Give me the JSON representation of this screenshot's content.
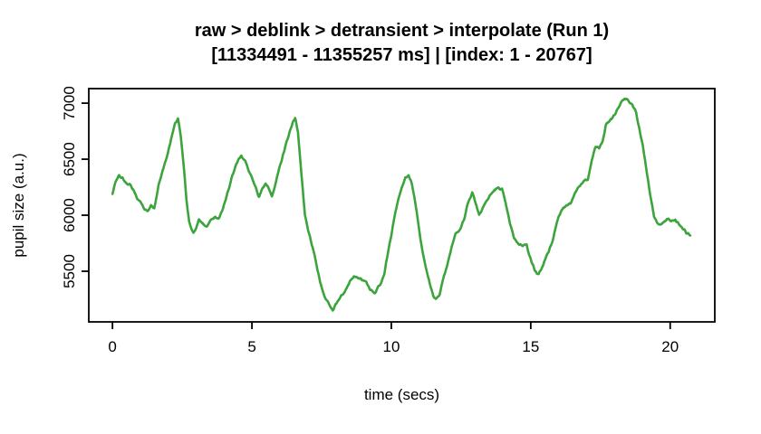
{
  "chart_data": {
    "type": "line",
    "title": "raw > deblink > detransient > interpolate (Run 1)",
    "subtitle": "[11334491 - 11355257 ms] | [index: 1 - 20767]",
    "xlabel": "time (secs)",
    "ylabel": "pupil size (a.u.)",
    "x_ticks": [
      0,
      5,
      10,
      15,
      20
    ],
    "y_ticks": [
      5500,
      6000,
      6500,
      7000
    ],
    "xlim": [
      -0.85,
      21.6
    ],
    "ylim": [
      5048,
      7130
    ],
    "grid": false,
    "legend": "none",
    "line_color": "#3CA43C",
    "series": [
      {
        "name": "pupil size trace",
        "points": [
          [
            0,
            6190
          ],
          [
            0.1,
            6285
          ],
          [
            0.23,
            6360
          ],
          [
            0.35,
            6330
          ],
          [
            0.5,
            6285
          ],
          [
            0.62,
            6270
          ],
          [
            0.75,
            6230
          ],
          [
            0.88,
            6150
          ],
          [
            1.0,
            6120
          ],
          [
            1.15,
            6055
          ],
          [
            1.27,
            6040
          ],
          [
            1.38,
            6085
          ],
          [
            1.5,
            6060
          ],
          [
            1.65,
            6265
          ],
          [
            1.8,
            6400
          ],
          [
            1.95,
            6520
          ],
          [
            2.1,
            6680
          ],
          [
            2.25,
            6820
          ],
          [
            2.35,
            6862
          ],
          [
            2.45,
            6700
          ],
          [
            2.55,
            6450
          ],
          [
            2.65,
            6150
          ],
          [
            2.75,
            5940
          ],
          [
            2.9,
            5835
          ],
          [
            3.0,
            5885
          ],
          [
            3.1,
            5965
          ],
          [
            3.22,
            5925
          ],
          [
            3.38,
            5895
          ],
          [
            3.52,
            5955
          ],
          [
            3.65,
            5985
          ],
          [
            3.8,
            5970
          ],
          [
            3.95,
            6050
          ],
          [
            4.1,
            6180
          ],
          [
            4.3,
            6360
          ],
          [
            4.5,
            6490
          ],
          [
            4.62,
            6532
          ],
          [
            4.75,
            6490
          ],
          [
            4.88,
            6400
          ],
          [
            5.0,
            6330
          ],
          [
            5.15,
            6230
          ],
          [
            5.25,
            6165
          ],
          [
            5.38,
            6240
          ],
          [
            5.49,
            6290
          ],
          [
            5.6,
            6235
          ],
          [
            5.72,
            6170
          ],
          [
            5.85,
            6290
          ],
          [
            6.0,
            6430
          ],
          [
            6.15,
            6570
          ],
          [
            6.3,
            6700
          ],
          [
            6.45,
            6820
          ],
          [
            6.55,
            6868
          ],
          [
            6.65,
            6750
          ],
          [
            6.78,
            6350
          ],
          [
            6.9,
            6000
          ],
          [
            7.05,
            5830
          ],
          [
            7.25,
            5640
          ],
          [
            7.45,
            5400
          ],
          [
            7.6,
            5280
          ],
          [
            7.78,
            5195
          ],
          [
            7.9,
            5155
          ],
          [
            8.0,
            5200
          ],
          [
            8.1,
            5245
          ],
          [
            8.25,
            5295
          ],
          [
            8.4,
            5355
          ],
          [
            8.55,
            5425
          ],
          [
            8.65,
            5448
          ],
          [
            8.8,
            5440
          ],
          [
            8.95,
            5425
          ],
          [
            9.1,
            5400
          ],
          [
            9.25,
            5335
          ],
          [
            9.4,
            5300
          ],
          [
            9.5,
            5350
          ],
          [
            9.62,
            5395
          ],
          [
            9.75,
            5480
          ],
          [
            9.9,
            5690
          ],
          [
            10.05,
            5900
          ],
          [
            10.2,
            6090
          ],
          [
            10.35,
            6230
          ],
          [
            10.5,
            6330
          ],
          [
            10.62,
            6360
          ],
          [
            10.75,
            6270
          ],
          [
            10.9,
            6050
          ],
          [
            11.05,
            5780
          ],
          [
            11.2,
            5570
          ],
          [
            11.35,
            5420
          ],
          [
            11.5,
            5280
          ],
          [
            11.6,
            5245
          ],
          [
            11.72,
            5290
          ],
          [
            11.85,
            5420
          ],
          [
            12.0,
            5550
          ],
          [
            12.15,
            5710
          ],
          [
            12.3,
            5840
          ],
          [
            12.45,
            5860
          ],
          [
            12.6,
            5960
          ],
          [
            12.75,
            6110
          ],
          [
            12.9,
            6205
          ],
          [
            13.0,
            6130
          ],
          [
            13.15,
            6005
          ],
          [
            13.28,
            6070
          ],
          [
            13.4,
            6120
          ],
          [
            13.55,
            6180
          ],
          [
            13.7,
            6225
          ],
          [
            13.85,
            6245
          ],
          [
            13.97,
            6230
          ],
          [
            14.1,
            6105
          ],
          [
            14.25,
            5930
          ],
          [
            14.4,
            5800
          ],
          [
            14.55,
            5745
          ],
          [
            14.7,
            5735
          ],
          [
            14.85,
            5735
          ],
          [
            15.0,
            5605
          ],
          [
            15.15,
            5505
          ],
          [
            15.28,
            5465
          ],
          [
            15.45,
            5560
          ],
          [
            15.6,
            5655
          ],
          [
            15.78,
            5765
          ],
          [
            15.95,
            5955
          ],
          [
            16.1,
            6050
          ],
          [
            16.28,
            6085
          ],
          [
            16.45,
            6110
          ],
          [
            16.6,
            6205
          ],
          [
            16.75,
            6265
          ],
          [
            16.9,
            6300
          ],
          [
            17.05,
            6320
          ],
          [
            17.2,
            6500
          ],
          [
            17.32,
            6610
          ],
          [
            17.45,
            6600
          ],
          [
            17.58,
            6660
          ],
          [
            17.7,
            6810
          ],
          [
            17.85,
            6850
          ],
          [
            18.0,
            6890
          ],
          [
            18.15,
            6965
          ],
          [
            18.3,
            7032
          ],
          [
            18.42,
            7040
          ],
          [
            18.55,
            7012
          ],
          [
            18.65,
            6990
          ],
          [
            18.78,
            6920
          ],
          [
            18.9,
            6760
          ],
          [
            19.02,
            6615
          ],
          [
            19.15,
            6400
          ],
          [
            19.28,
            6180
          ],
          [
            19.42,
            5995
          ],
          [
            19.52,
            5930
          ],
          [
            19.65,
            5912
          ],
          [
            19.8,
            5945
          ],
          [
            19.94,
            5970
          ],
          [
            20.05,
            5945
          ],
          [
            20.18,
            5962
          ],
          [
            20.3,
            5925
          ],
          [
            20.45,
            5885
          ],
          [
            20.58,
            5845
          ],
          [
            20.72,
            5825
          ]
        ]
      }
    ]
  },
  "colors": {
    "background": "#ffffff",
    "axis": "#000000",
    "text": "#000000",
    "line": "#3CA43C"
  }
}
